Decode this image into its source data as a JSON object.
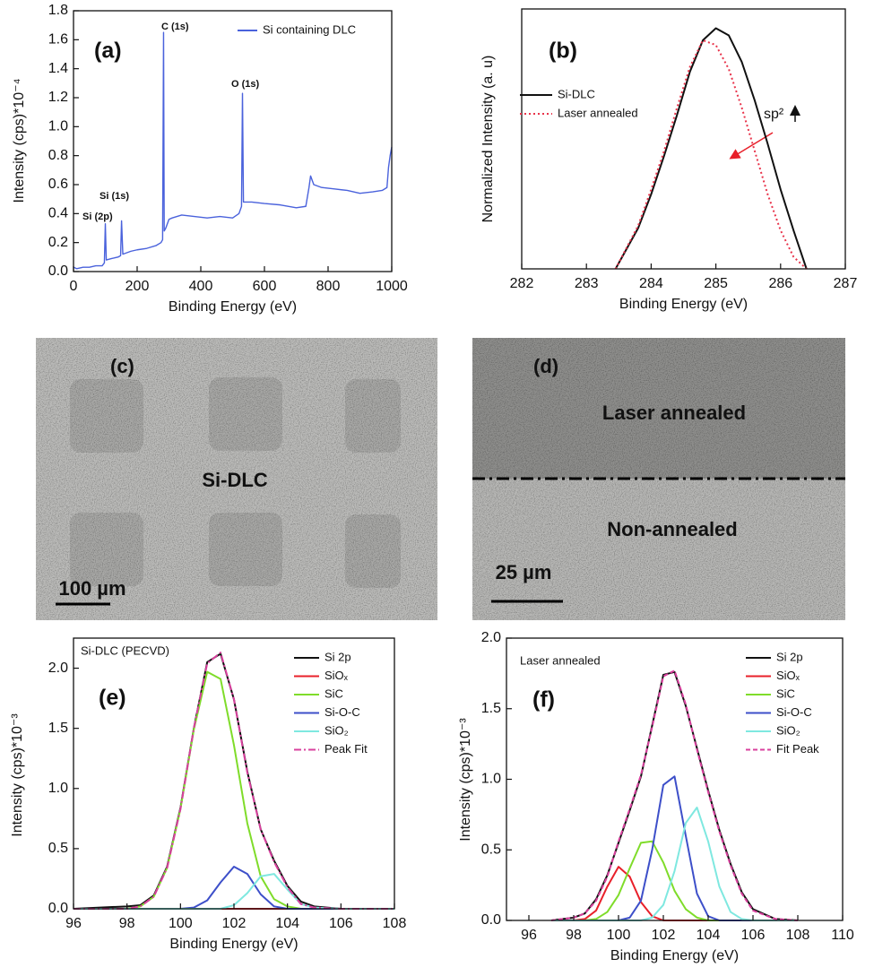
{
  "chart_data": [
    {
      "type": "line",
      "panel": "(a)",
      "x_label": "Binding Energy (eV)",
      "y_label": "Intensity (cps)*10⁻⁴",
      "xlim": [
        0,
        1000
      ],
      "ylim": [
        0,
        1.8
      ],
      "xticks": [
        0,
        200,
        400,
        600,
        800,
        1000
      ],
      "yticks": [
        {
          "value": 0,
          "label": "0.0"
        },
        0.2,
        0.4,
        0.6,
        0.8,
        {
          "value": 1,
          "label": "1.0"
        },
        1.2,
        1.4,
        1.6,
        1.8
      ],
      "legend": "upper right",
      "annotations": [
        "Si (2p)",
        "Si (1s)",
        "C (1s)",
        "O (1s)"
      ],
      "x": [
        0,
        10,
        30,
        50,
        70,
        90,
        97,
        100,
        103,
        120,
        140,
        148,
        151,
        155,
        180,
        200,
        230,
        260,
        275,
        280,
        283,
        285,
        290,
        300,
        310,
        340,
        380,
        420,
        460,
        500,
        520,
        528,
        531,
        534,
        545,
        560,
        600,
        650,
        700,
        730,
        740,
        745,
        755,
        780,
        820,
        860,
        900,
        940,
        970,
        985,
        990,
        995,
        1000
      ],
      "series": [
        {
          "name": "Si containing DLC",
          "color": "#4a62dc",
          "style": "solid",
          "values": [
            0.03,
            0.02,
            0.03,
            0.03,
            0.04,
            0.04,
            0.06,
            0.33,
            0.08,
            0.09,
            0.1,
            0.11,
            0.35,
            0.12,
            0.14,
            0.15,
            0.16,
            0.18,
            0.2,
            0.22,
            1.65,
            0.28,
            0.3,
            0.36,
            0.37,
            0.39,
            0.38,
            0.37,
            0.38,
            0.37,
            0.4,
            0.45,
            1.23,
            0.48,
            0.48,
            0.48,
            0.47,
            0.46,
            0.44,
            0.45,
            0.58,
            0.66,
            0.6,
            0.58,
            0.57,
            0.56,
            0.54,
            0.55,
            0.56,
            0.58,
            0.72,
            0.8,
            0.86
          ]
        }
      ]
    },
    {
      "type": "line",
      "panel": "(b)",
      "x_label": "Binding Energy (eV)",
      "y_label": "Normalized Intensity (a. u)",
      "xlim": [
        282,
        287
      ],
      "ylim": [
        0,
        1.08
      ],
      "xticks": [
        282,
        283,
        284,
        285,
        286,
        287
      ],
      "legend": "center left",
      "annotations": [
        "sp²"
      ],
      "x": [
        283.45,
        283.8,
        284.0,
        284.2,
        284.4,
        284.6,
        284.8,
        285.0,
        285.2,
        285.4,
        285.6,
        285.8,
        286.0,
        286.2,
        286.4
      ],
      "series": [
        {
          "name": "Si-DLC",
          "color": "#111111",
          "style": "solid",
          "values": [
            0,
            0.17,
            0.31,
            0.47,
            0.64,
            0.82,
            0.95,
            1.0,
            0.97,
            0.86,
            0.7,
            0.52,
            0.33,
            0.16,
            0
          ]
        },
        {
          "name": "Laser annealed",
          "color": "#e8334a",
          "style": "dotted",
          "values": [
            0,
            0.18,
            0.33,
            0.49,
            0.67,
            0.84,
            0.95,
            0.93,
            0.83,
            0.67,
            0.49,
            0.31,
            0.16,
            0.05,
            0
          ]
        }
      ]
    },
    {
      "type": "line",
      "panel": "(e)",
      "x_label": "Binding Energy (eV)",
      "y_label": "Intensity (cps)*10⁻³",
      "xlim": [
        96,
        108
      ],
      "ylim": [
        0,
        2.25
      ],
      "xticks": [
        96,
        98,
        100,
        102,
        104,
        106,
        108
      ],
      "yticks": [
        {
          "value": 0,
          "label": "0.0"
        },
        0.5,
        {
          "value": 1,
          "label": "1.0"
        },
        1.5,
        {
          "value": 2,
          "label": "2.0"
        }
      ],
      "legend": "upper right",
      "annotations": [
        "Si-DLC (PECVD)"
      ],
      "x": [
        96,
        97,
        98,
        98.5,
        99,
        99.5,
        100,
        100.5,
        101,
        101.5,
        102,
        102.5,
        103,
        103.5,
        104,
        104.5,
        105,
        106,
        107,
        108
      ],
      "series": [
        {
          "name": "Si 2p",
          "color": "#111111",
          "style": "solid",
          "values": [
            0,
            0.01,
            0.02,
            0.03,
            0.11,
            0.35,
            0.84,
            1.5,
            2.05,
            2.12,
            1.74,
            1.14,
            0.66,
            0.4,
            0.19,
            0.06,
            0.02,
            0,
            0,
            0
          ]
        },
        {
          "name": "SiOₓ",
          "color": "#e8202a",
          "style": "solid",
          "values": [
            0,
            0,
            0,
            0,
            0,
            0,
            0,
            0,
            0,
            0,
            0,
            0,
            0,
            0,
            0,
            0,
            0,
            0,
            0,
            0
          ]
        },
        {
          "name": "SiC",
          "color": "#7fdc2a",
          "style": "solid",
          "values": [
            0,
            0,
            0,
            0.02,
            0.1,
            0.34,
            0.83,
            1.49,
            1.97,
            1.91,
            1.36,
            0.71,
            0.27,
            0.08,
            0.02,
            0,
            0,
            0,
            0,
            0
          ]
        },
        {
          "name": "Si-O-C",
          "color": "#3d4fc9",
          "style": "solid",
          "values": [
            0,
            0,
            0,
            0,
            0,
            0,
            0,
            0.01,
            0.07,
            0.22,
            0.35,
            0.29,
            0.12,
            0.02,
            0,
            0,
            0,
            0,
            0,
            0
          ]
        },
        {
          "name": "SiO₂",
          "color": "#7fe8e0",
          "style": "solid",
          "values": [
            0,
            0,
            0,
            0,
            0,
            0,
            0,
            0,
            0,
            0,
            0.03,
            0.13,
            0.27,
            0.29,
            0.16,
            0.04,
            0.01,
            0,
            0,
            0
          ]
        },
        {
          "name": "Peak Fit",
          "color": "#d9409e",
          "style": "dashdot",
          "values": [
            0,
            0,
            0,
            0.02,
            0.1,
            0.34,
            0.83,
            1.5,
            2.04,
            2.13,
            1.74,
            1.13,
            0.66,
            0.39,
            0.18,
            0.04,
            0.01,
            0,
            0,
            0
          ]
        }
      ]
    },
    {
      "type": "line",
      "panel": "(f)",
      "x_label": "Binding Energy (eV)",
      "y_label": "Intensity (cps)*10⁻³",
      "xlim": [
        95,
        110
      ],
      "ylim": [
        0,
        2.0
      ],
      "xticks": [
        96,
        98,
        100,
        102,
        104,
        106,
        108,
        110
      ],
      "yticks": [
        {
          "value": 0,
          "label": "0.0"
        },
        0.5,
        {
          "value": 1,
          "label": "1.0"
        },
        1.5,
        {
          "value": 2,
          "label": "2.0"
        }
      ],
      "legend": "upper right",
      "annotations": [
        "Laser annealed"
      ],
      "x": [
        97,
        98,
        98.5,
        99,
        99.5,
        100,
        100.5,
        101,
        101.5,
        102,
        102.5,
        103,
        103.5,
        104,
        104.5,
        105,
        105.5,
        106,
        107,
        108
      ],
      "series": [
        {
          "name": "Si 2p",
          "color": "#111111",
          "style": "solid",
          "values": [
            0,
            0.02,
            0.05,
            0.15,
            0.32,
            0.55,
            0.78,
            1.02,
            1.38,
            1.74,
            1.76,
            1.52,
            1.22,
            0.92,
            0.64,
            0.4,
            0.2,
            0.08,
            0.01,
            0
          ]
        },
        {
          "name": "SiOₓ",
          "color": "#e8202a",
          "style": "solid",
          "values": [
            0,
            0,
            0.01,
            0.07,
            0.24,
            0.38,
            0.31,
            0.13,
            0.03,
            0,
            0,
            0,
            0,
            0,
            0,
            0,
            0,
            0,
            0,
            0
          ]
        },
        {
          "name": "SiC",
          "color": "#7fdc2a",
          "style": "solid",
          "values": [
            0,
            0,
            0,
            0.01,
            0.06,
            0.18,
            0.37,
            0.55,
            0.56,
            0.41,
            0.21,
            0.08,
            0.02,
            0,
            0,
            0,
            0,
            0,
            0,
            0
          ]
        },
        {
          "name": "Si-O-C",
          "color": "#3d4fc9",
          "style": "solid",
          "values": [
            0,
            0,
            0,
            0,
            0,
            0,
            0.02,
            0.14,
            0.5,
            0.96,
            1.02,
            0.6,
            0.19,
            0.03,
            0,
            0,
            0,
            0,
            0,
            0
          ]
        },
        {
          "name": "SiO₂",
          "color": "#7fe8e0",
          "style": "solid",
          "values": [
            0,
            0,
            0,
            0,
            0,
            0,
            0,
            0,
            0.02,
            0.11,
            0.35,
            0.69,
            0.8,
            0.56,
            0.24,
            0.06,
            0.01,
            0,
            0,
            0
          ]
        },
        {
          "name": "Fit Peak",
          "color": "#d9409e",
          "style": "dashed",
          "values": [
            0,
            0.02,
            0.05,
            0.14,
            0.31,
            0.56,
            0.79,
            1.03,
            1.37,
            1.73,
            1.77,
            1.53,
            1.21,
            0.91,
            0.63,
            0.39,
            0.19,
            0.07,
            0.01,
            0
          ]
        }
      ]
    }
  ],
  "micrographs": [
    {
      "panel": "(c)",
      "label": "Si-DLC",
      "scale_bar": "100 µm"
    },
    {
      "panel": "(d)",
      "labels": [
        "Laser annealed",
        "Non-annealed"
      ],
      "scale_bar": "25 µm"
    }
  ]
}
